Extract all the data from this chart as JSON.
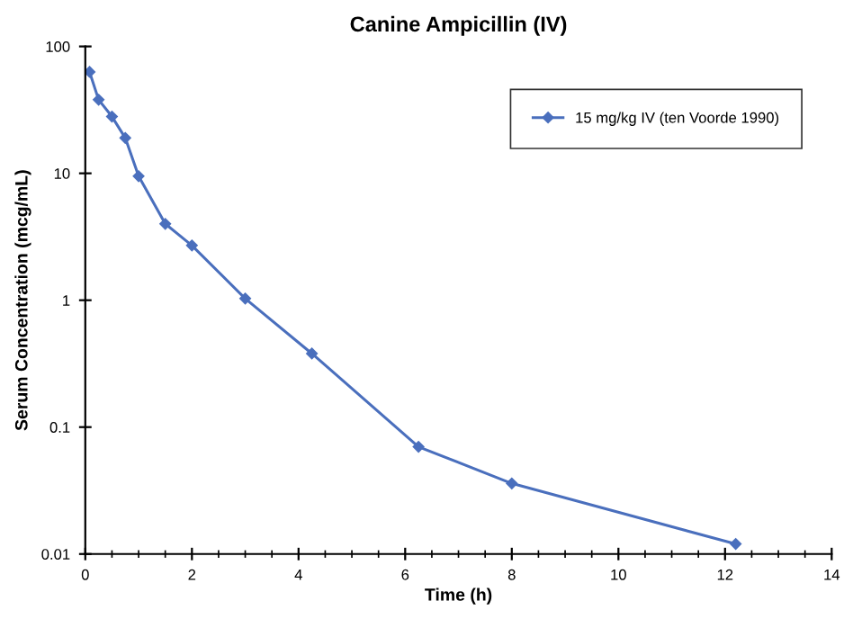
{
  "chart_data": {
    "type": "line",
    "title": "Canine Ampicillin (IV)",
    "xlabel": "Time (h)",
    "ylabel": "Serum Concentration (mcg/mL)",
    "series": [
      {
        "name": "15 mg/kg IV (ten Voorde 1990)",
        "color": "#4a6fbd",
        "x": [
          0.08,
          0.25,
          0.5,
          0.75,
          1,
          1.5,
          2,
          3,
          4.25,
          6.25,
          8,
          12.2
        ],
        "values": [
          63,
          38,
          28,
          19,
          9.5,
          4,
          2.7,
          1.03,
          0.38,
          0.07,
          0.036,
          0.012
        ]
      }
    ],
    "xlim": [
      0,
      14
    ],
    "xticks": [
      0,
      2,
      4,
      6,
      8,
      10,
      12,
      14
    ],
    "ylim": [
      0.01,
      100
    ],
    "yticks": [
      0.01,
      0.1,
      1,
      10,
      100
    ],
    "log": "y",
    "marker": "diamond",
    "line_style": "solid",
    "legend": "top right",
    "grid": false
  }
}
